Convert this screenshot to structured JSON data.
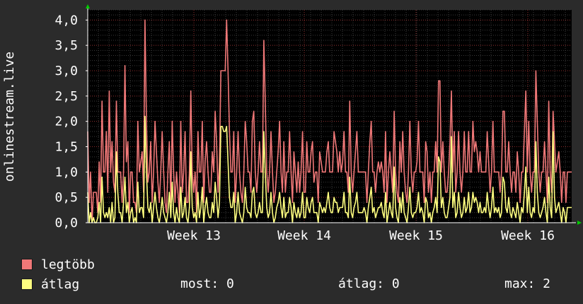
{
  "chart_data": {
    "type": "line",
    "ylabel": "onlinestream.live",
    "y_ticks": [
      "0,0",
      "0,5",
      "1,0",
      "1,5",
      "2,0",
      "2,5",
      "3,0",
      "3,5",
      "4,0"
    ],
    "ylim": [
      0,
      4.2
    ],
    "x_tick_labels": [
      "Week 13",
      "Week 14",
      "Week 15",
      "Week 16"
    ],
    "grid": true,
    "series": [
      {
        "name": "legtöbb",
        "color": "#f07878",
        "values": [
          1.8,
          0.4,
          1,
          0,
          0.6,
          0.6,
          0.6,
          0.2,
          1.2,
          0.4,
          2.4,
          1,
          1,
          1.8,
          0.6,
          2.6,
          1,
          1.6,
          0.8,
          0.6,
          2.4,
          1,
          1,
          1,
          0.4,
          1,
          3.1,
          1.2,
          1.6,
          0.2,
          1,
          1,
          0.4,
          0.4,
          0.2,
          2,
          1,
          1.2,
          1.4,
          0.6,
          4,
          2,
          0.8,
          1,
          1.6,
          0.4,
          1,
          2,
          1.4,
          0.8,
          0.4,
          1,
          1.8,
          1,
          0.4,
          0.2,
          1,
          1.6,
          0.4,
          2,
          1,
          0.4,
          1,
          0.6,
          0.2,
          2,
          0.6,
          1,
          1.8,
          0.4,
          0.4,
          1,
          2.6,
          1,
          0.6,
          1,
          0.2,
          1.8,
          1,
          1,
          2,
          0.4,
          1.2,
          1.6,
          1,
          0.6,
          0.6,
          1.4,
          1,
          2.2,
          1.6,
          0.6,
          1.2,
          3,
          3,
          3,
          3,
          4,
          3,
          1.8,
          1,
          1,
          1.8,
          0.4,
          1,
          1.8,
          1,
          0.6,
          0.4,
          1,
          2,
          1.6,
          1,
          1,
          0.6,
          2,
          2.2,
          1,
          0.6,
          1,
          1.6,
          1,
          1,
          3.6,
          2.4,
          1,
          0.6,
          1,
          1.8,
          1,
          0.4,
          0.6,
          1,
          1.4,
          2,
          1,
          0.6,
          1.6,
          0.6,
          1,
          1,
          1.8,
          1,
          0.4,
          1.4,
          1,
          0.6,
          1.2,
          0.6,
          1,
          1.8,
          0.6,
          0.6,
          1.6,
          1,
          1,
          1.4,
          1.6,
          0.8,
          1,
          1,
          0.4,
          1.4,
          1.2,
          1,
          1,
          1,
          1.4,
          1.6,
          1,
          1,
          1,
          1.8,
          1.6,
          1.4,
          1,
          1.4,
          1,
          1.2,
          1.8,
          1,
          1,
          0.6,
          2.4,
          1,
          0.6,
          1,
          1.4,
          1.8,
          1,
          1,
          1,
          1,
          1,
          1,
          0.4,
          1,
          1.6,
          2,
          1,
          1,
          0.6,
          1,
          1.2,
          1,
          1.2,
          1,
          0.6,
          1.8,
          0.4,
          1,
          1.4,
          1,
          0.6,
          2.2,
          1,
          0.6,
          0.4,
          1.6,
          1,
          1.8,
          1,
          0.6,
          0.4,
          1,
          2,
          1,
          0.6,
          1,
          1,
          1.2,
          2,
          1,
          1,
          1,
          0.4,
          1.6,
          1.4,
          0.6,
          1,
          0.4,
          1,
          1,
          1.6,
          1,
          2.8,
          2.8,
          1,
          1.6,
          1,
          0.6,
          0.6,
          1,
          1.6,
          2.6,
          1,
          1.8,
          0.6,
          1,
          1.8,
          1,
          0.6,
          1,
          1.8,
          1,
          1,
          1.8,
          1,
          1,
          2,
          1.4,
          1.6,
          1.4,
          1,
          1.4,
          1,
          1,
          1,
          1,
          1.8,
          1.2,
          0.6,
          1,
          2,
          1,
          1,
          1,
          1,
          0.6,
          1,
          2.2,
          2.2,
          1,
          1,
          1.6,
          1,
          0.6,
          1,
          1,
          0.6,
          1.4,
          1,
          0.4,
          1,
          1,
          1.8,
          2.6,
          1,
          2,
          1,
          0.6,
          1,
          1,
          3,
          2,
          1,
          0.6,
          1,
          1,
          1.6,
          1,
          0.4,
          2.4,
          1,
          0.6,
          2.2,
          1.6,
          1,
          1.2,
          1.4,
          1,
          0.4,
          1,
          1,
          0.4,
          1,
          1,
          1,
          1
        ],
        "max_current": null
      },
      {
        "name": "átlag",
        "color": "#ffff80",
        "values": [
          0.6,
          0,
          0.2,
          0,
          0.1,
          0,
          0,
          0.1,
          0.4,
          0,
          0.9,
          0.2,
          0.1,
          0.2,
          0.1,
          0.3,
          0,
          0.4,
          0,
          0.1,
          1.4,
          0.6,
          0.2,
          0.2,
          0,
          0.4,
          0.9,
          0.2,
          0.4,
          0,
          0.2,
          0.3,
          0,
          0.1,
          0,
          0.8,
          0.2,
          0.3,
          0.3,
          0.1,
          2.1,
          1,
          0.3,
          0.2,
          0.4,
          0,
          0.3,
          0.6,
          0.3,
          0.1,
          0,
          0.2,
          0.5,
          0.2,
          0.1,
          0,
          0.2,
          0.6,
          0.1,
          0.8,
          0.2,
          0,
          0.3,
          0.1,
          0,
          0.7,
          0.1,
          0.2,
          0.5,
          0.1,
          0,
          0.3,
          1.4,
          0.3,
          0.1,
          0.2,
          0,
          0.6,
          0.1,
          0.3,
          0.7,
          0,
          0.3,
          0.5,
          0.2,
          0.1,
          0.1,
          0.4,
          0.2,
          0.8,
          0.5,
          0.1,
          0.4,
          1.9,
          1.9,
          1.8,
          1.8,
          1.9,
          1.2,
          0.5,
          0.3,
          0.3,
          0.6,
          0,
          0.2,
          0.6,
          0.2,
          0.1,
          0,
          0.2,
          0.7,
          0.3,
          0.2,
          0.2,
          0.1,
          0.6,
          0.7,
          0.2,
          0.1,
          0.2,
          0.4,
          0.2,
          0.2,
          1.8,
          1,
          0.3,
          0.1,
          0.2,
          0.6,
          0.2,
          0,
          0.1,
          0.3,
          0.4,
          0.6,
          0.3,
          0.1,
          0.5,
          0.1,
          0.2,
          0.2,
          0.5,
          0.3,
          0,
          0.4,
          0.2,
          0.1,
          0.3,
          0.1,
          0.2,
          0.6,
          0.1,
          0.1,
          0.5,
          0.3,
          0.2,
          0.4,
          0.5,
          0.2,
          0.2,
          0.2,
          0,
          0.4,
          0.3,
          0.2,
          0.3,
          0.2,
          0.4,
          0.6,
          0.3,
          0.2,
          0.2,
          0.5,
          0.4,
          0.4,
          0.2,
          0.3,
          0.3,
          0.3,
          0.6,
          0.2,
          0.2,
          0.1,
          0.9,
          0.2,
          0.1,
          0.3,
          0.4,
          0.6,
          0.2,
          0.2,
          0.2,
          0.2,
          0.3,
          0.2,
          0,
          0.3,
          0.5,
          0.7,
          0.2,
          0.3,
          0.1,
          0.2,
          0.3,
          0.3,
          0.4,
          0.2,
          0.1,
          0.6,
          0,
          0.2,
          0.4,
          0.2,
          0.1,
          1.1,
          0.3,
          0.1,
          0,
          0.5,
          0.2,
          0.6,
          0.2,
          0.1,
          0,
          0.3,
          0.7,
          0.2,
          0.1,
          0.2,
          0.2,
          0.3,
          0.6,
          0.2,
          0.3,
          0.2,
          0,
          0.5,
          0.4,
          0.1,
          0.2,
          0,
          0.2,
          0.3,
          0.5,
          0.2,
          1.3,
          1.2,
          0.3,
          0.5,
          0.2,
          0.1,
          0.1,
          0.3,
          0.5,
          1.7,
          0.3,
          0.6,
          0.1,
          0.2,
          0.6,
          0.3,
          0.1,
          0.2,
          0.5,
          0.2,
          0.3,
          0.6,
          0.2,
          0.3,
          0.6,
          0.4,
          0.5,
          0.4,
          0.2,
          0.4,
          0.2,
          0.2,
          0.3,
          0.2,
          0.6,
          0.3,
          0.1,
          0.3,
          0.7,
          0.2,
          0.3,
          0.2,
          0.3,
          0.1,
          0.2,
          0.9,
          0.8,
          0.3,
          0.2,
          0.5,
          0.2,
          0.1,
          0.3,
          0.2,
          0.1,
          0.4,
          0.2,
          0,
          0.3,
          0.2,
          0.6,
          1.1,
          0.2,
          0.7,
          0.2,
          0.1,
          0.3,
          0.2,
          1.6,
          0.6,
          0.2,
          0.1,
          0.2,
          0.3,
          0.5,
          0.2,
          0,
          0.9,
          0.3,
          0.1,
          1.8,
          0.5,
          0.2,
          0.3,
          0.4,
          0.2,
          0,
          0.3,
          0.2,
          0,
          0.3,
          0.3,
          0.3,
          0.3
        ]
      }
    ]
  },
  "legend": {
    "max_label": "legtöbb",
    "avg_label": "átlag",
    "stat_now": "most: 0",
    "stat_avg": "átlag: 0",
    "stat_max": "max: 2"
  }
}
